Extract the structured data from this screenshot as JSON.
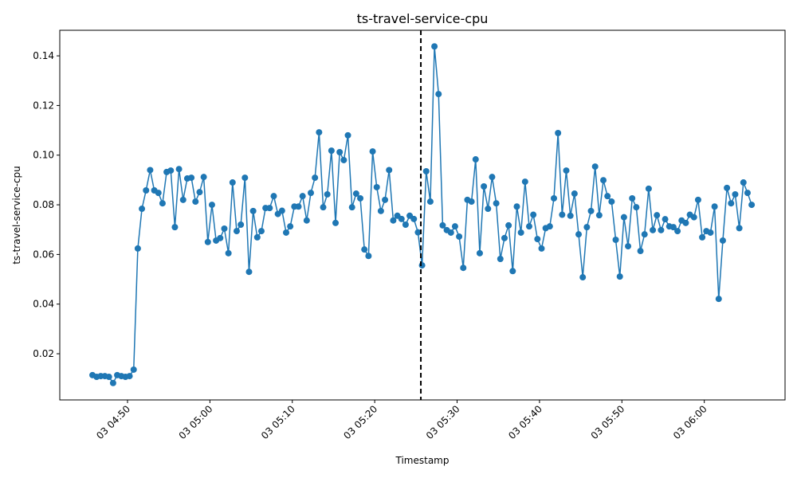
{
  "chart_data": {
    "type": "line",
    "title": "ts-travel-service-cpu",
    "x_label": "Timestamp",
    "y_label": "ts-travel-service-cpu",
    "x": [
      285.75,
      286.25,
      286.75,
      287.25,
      287.75,
      288.25,
      288.75,
      289.25,
      289.75,
      290.25,
      290.75,
      291.25,
      291.75,
      292.25,
      292.75,
      293.25,
      293.75,
      294.25,
      294.75,
      295.25,
      295.75,
      296.25,
      296.75,
      297.25,
      297.75,
      298.25,
      298.75,
      299.25,
      299.75,
      300.25,
      300.75,
      301.25,
      301.75,
      302.25,
      302.75,
      303.25,
      303.75,
      304.25,
      304.75,
      305.25,
      305.75,
      306.25,
      306.75,
      307.25,
      307.75,
      308.25,
      308.75,
      309.25,
      309.75,
      310.25,
      310.75,
      311.25,
      311.75,
      312.25,
      312.75,
      313.25,
      313.75,
      314.25,
      314.75,
      315.25,
      315.75,
      316.25,
      316.75,
      317.25,
      317.75,
      318.25,
      318.75,
      319.25,
      319.75,
      320.25,
      320.75,
      321.25,
      321.75,
      322.25,
      322.75,
      323.25,
      323.75,
      324.25,
      324.75,
      325.25,
      325.75,
      326.25,
      326.75,
      327.25,
      327.75,
      328.25,
      328.75,
      329.25,
      329.75,
      330.25,
      330.75,
      331.25,
      331.75,
      332.25,
      332.75,
      333.25,
      333.75,
      334.25,
      334.75,
      335.25,
      335.75,
      336.25,
      336.75,
      337.25,
      337.75,
      338.25,
      338.75,
      339.25,
      339.75,
      340.25,
      340.75,
      341.25,
      341.75,
      342.25,
      342.75,
      343.25,
      343.75,
      344.25,
      344.75,
      345.25,
      345.75,
      346.25,
      346.75,
      347.25,
      347.75,
      348.25,
      348.75,
      349.25,
      349.75,
      350.25,
      350.75,
      351.25,
      351.75,
      352.25,
      352.75,
      353.25,
      353.75,
      354.25,
      354.75,
      355.25,
      355.75,
      356.25,
      356.75,
      357.25,
      357.75,
      358.25,
      358.75,
      359.25,
      359.75,
      360.25,
      360.75,
      361.25,
      361.75,
      362.25,
      362.75,
      363.25,
      363.75,
      364.25,
      364.75,
      365.25,
      365.75
    ],
    "series": [
      {
        "name": "ts-travel-service-cpu",
        "color": "#1f77b4",
        "values": [
          0.0114,
          0.0107,
          0.011,
          0.011,
          0.0107,
          0.0082,
          0.0114,
          0.011,
          0.0107,
          0.011,
          0.0136,
          0.0624,
          0.0784,
          0.0858,
          0.094,
          0.0858,
          0.0848,
          0.0806,
          0.0932,
          0.0938,
          0.071,
          0.0944,
          0.082,
          0.0906,
          0.0909,
          0.0813,
          0.0851,
          0.0912,
          0.065,
          0.08,
          0.0656,
          0.0666,
          0.0704,
          0.0605,
          0.089,
          0.0694,
          0.072,
          0.0909,
          0.053,
          0.0775,
          0.0669,
          0.0694,
          0.0787,
          0.0787,
          0.0835,
          0.0763,
          0.0776,
          0.0688,
          0.0713,
          0.0793,
          0.0793,
          0.0835,
          0.0737,
          0.0848,
          0.0909,
          0.1092,
          0.079,
          0.0842,
          0.1018,
          0.0727,
          0.1012,
          0.098,
          0.108,
          0.079,
          0.0845,
          0.0826,
          0.062,
          0.0594,
          0.1015,
          0.0871,
          0.0775,
          0.082,
          0.094,
          0.0737,
          0.0756,
          0.0743,
          0.072,
          0.0756,
          0.0743,
          0.0689,
          0.0556,
          0.0935,
          0.0813,
          0.1438,
          0.1246,
          0.0717,
          0.0698,
          0.0688,
          0.0713,
          0.0672,
          0.0546,
          0.082,
          0.0813,
          0.0983,
          0.0605,
          0.0874,
          0.0784,
          0.0912,
          0.0806,
          0.0582,
          0.0666,
          0.0717,
          0.0533,
          0.0793,
          0.0688,
          0.0893,
          0.0713,
          0.076,
          0.0662,
          0.0624,
          0.0706,
          0.0713,
          0.0826,
          0.1089,
          0.076,
          0.0938,
          0.0756,
          0.0845,
          0.0681,
          0.0508,
          0.071,
          0.0775,
          0.0954,
          0.0758,
          0.0899,
          0.0835,
          0.0813,
          0.0659,
          0.0511,
          0.075,
          0.0633,
          0.0826,
          0.079,
          0.0614,
          0.0681,
          0.0865,
          0.0698,
          0.0758,
          0.0698,
          0.0742,
          0.0713,
          0.071,
          0.0694,
          0.0737,
          0.0727,
          0.076,
          0.075,
          0.082,
          0.0669,
          0.0694,
          0.0688,
          0.0793,
          0.0421,
          0.0656,
          0.0868,
          0.0806,
          0.0842,
          0.0706,
          0.089,
          0.0848,
          0.08
        ]
      }
    ],
    "vline": 325.6,
    "xlim": [
      281.78,
      369.8
    ],
    "xticks": [
      {
        "value": 290,
        "label": "03 04:50"
      },
      {
        "value": 300,
        "label": "03 05:00"
      },
      {
        "value": 310,
        "label": "03 05:10"
      },
      {
        "value": 320,
        "label": "03 05:20"
      },
      {
        "value": 330,
        "label": "03 05:30"
      },
      {
        "value": 340,
        "label": "03 05:40"
      },
      {
        "value": 350,
        "label": "03 05:50"
      },
      {
        "value": 360,
        "label": "03 06:00"
      }
    ],
    "ylim": [
      0.0014,
      0.1503
    ],
    "yticks": [
      0.02,
      0.04,
      0.06,
      0.08,
      {
        "value": 0.1,
        "label": "0.10"
      },
      0.12,
      0.14
    ],
    "grid": false
  }
}
